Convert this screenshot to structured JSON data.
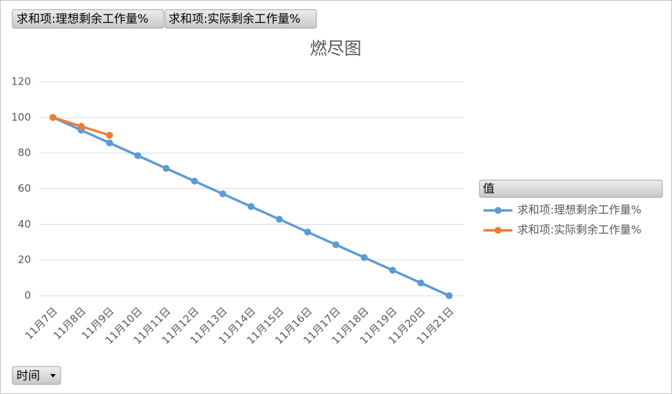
{
  "pivot_buttons": [
    "求和项:理想剩余工作量%",
    "求和项:实际剩余工作量%"
  ],
  "axis_field_button": "时间",
  "chart_data": {
    "type": "line",
    "title": "燃尽图",
    "categories": [
      "11月7日",
      "11月8日",
      "11月9日",
      "11月10日",
      "11月11日",
      "11月12日",
      "11月13日",
      "11月14日",
      "11月15日",
      "11月16日",
      "11月17日",
      "11月18日",
      "11月19日",
      "11月20日",
      "11月21日"
    ],
    "series": [
      {
        "name": "求和项:理想剩余工作量%",
        "color": "#5b9bd5",
        "values": [
          100,
          92.86,
          85.71,
          78.57,
          71.43,
          64.29,
          57.14,
          50,
          42.86,
          35.71,
          28.57,
          21.43,
          14.29,
          7.14,
          0
        ]
      },
      {
        "name": "求和项:实际剩余工作量%",
        "color": "#ed7d31",
        "values": [
          100,
          95,
          90,
          null,
          null,
          null,
          null,
          null,
          null,
          null,
          null,
          null,
          null,
          null,
          null
        ]
      }
    ],
    "ylim": [
      0,
      120
    ],
    "yticks": [
      0,
      20,
      40,
      60,
      80,
      100,
      120
    ],
    "grid": true,
    "legend_title": "值",
    "legend_position": "right"
  }
}
